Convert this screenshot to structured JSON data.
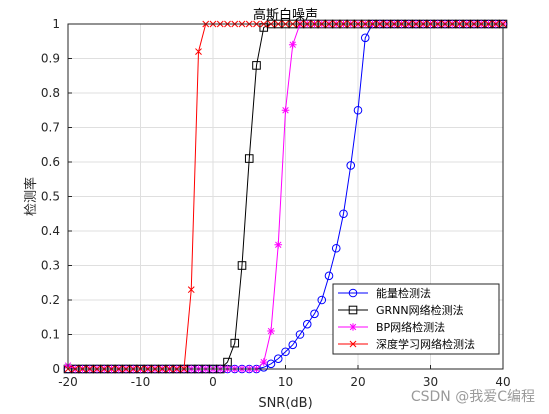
{
  "chart_data": {
    "type": "line",
    "title": "高斯白噪声",
    "xlabel": "SNR(dB)",
    "ylabel": "检测率",
    "xlim": [
      -20,
      40
    ],
    "ylim": [
      0,
      1
    ],
    "xticks": [
      -20,
      -10,
      0,
      10,
      20,
      30,
      40
    ],
    "yticks": [
      0,
      0.1,
      0.2,
      0.3,
      0.4,
      0.5,
      0.6,
      0.7,
      0.8,
      0.9,
      1
    ],
    "grid": true,
    "legend_position": "bottom-right",
    "x": [
      -20,
      -19,
      -18,
      -17,
      -16,
      -15,
      -14,
      -13,
      -12,
      -11,
      -10,
      -9,
      -8,
      -7,
      -6,
      -5,
      -4,
      -3,
      -2,
      -1,
      0,
      1,
      2,
      3,
      4,
      5,
      6,
      7,
      8,
      9,
      10,
      11,
      12,
      13,
      14,
      15,
      16,
      17,
      18,
      19,
      20,
      21,
      22,
      23,
      24,
      25,
      26,
      27,
      28,
      29,
      30,
      31,
      32,
      33,
      34,
      35,
      36,
      37,
      38,
      39,
      40
    ],
    "series": [
      {
        "name": "能量检测法",
        "color": "#0000ff",
        "marker": "circle",
        "values": [
          0,
          0,
          0,
          0,
          0,
          0,
          0,
          0,
          0,
          0,
          0,
          0,
          0,
          0,
          0,
          0,
          0,
          0,
          0,
          0,
          0,
          0,
          0,
          0,
          0,
          0,
          0,
          0.005,
          0.015,
          0.03,
          0.05,
          0.07,
          0.1,
          0.13,
          0.16,
          0.2,
          0.27,
          0.35,
          0.45,
          0.59,
          0.75,
          0.96,
          1,
          1,
          1,
          1,
          1,
          1,
          1,
          1,
          1,
          1,
          1,
          1,
          1,
          1,
          1,
          1,
          1,
          1,
          1
        ]
      },
      {
        "name": "GRNN网络检测法",
        "color": "#000000",
        "marker": "square",
        "values": [
          0,
          0,
          0,
          0,
          0,
          0,
          0,
          0,
          0,
          0,
          0,
          0,
          0,
          0,
          0,
          0,
          0,
          0,
          0,
          0,
          0,
          0,
          0.02,
          0.075,
          0.3,
          0.61,
          0.88,
          0.99,
          1,
          1,
          1,
          1,
          1,
          1,
          1,
          1,
          1,
          1,
          1,
          1,
          1,
          1,
          1,
          1,
          1,
          1,
          1,
          1,
          1,
          1,
          1,
          1,
          1,
          1,
          1,
          1,
          1,
          1,
          1,
          1,
          1
        ]
      },
      {
        "name": "BP网络检测法",
        "color": "#ff00ff",
        "marker": "star",
        "values": [
          0.01,
          0,
          0,
          0,
          0,
          0,
          0,
          0,
          0,
          0,
          0,
          0,
          0,
          0,
          0,
          0,
          0,
          0,
          0,
          0,
          0,
          0,
          0,
          0,
          0,
          0,
          0,
          0.02,
          0.11,
          0.36,
          0.75,
          0.94,
          1,
          1,
          1,
          1,
          1,
          1,
          1,
          1,
          1,
          1,
          1,
          1,
          1,
          1,
          1,
          1,
          1,
          1,
          1,
          1,
          1,
          1,
          1,
          1,
          1,
          1,
          1,
          1,
          1
        ]
      },
      {
        "name": "深度学习网络检测法",
        "color": "#ff0000",
        "marker": "x",
        "values": [
          0,
          0,
          0,
          0,
          0,
          0,
          0,
          0,
          0,
          0,
          0,
          0,
          0,
          0,
          0,
          0,
          0,
          0.23,
          0.92,
          1,
          1,
          1,
          1,
          1,
          1,
          1,
          1,
          1,
          1,
          1,
          1,
          1,
          1,
          1,
          1,
          1,
          1,
          1,
          1,
          1,
          1,
          1,
          1,
          1,
          1,
          1,
          1,
          1,
          1,
          1,
          1,
          1,
          1,
          1,
          1,
          1,
          1,
          1,
          1,
          1,
          1
        ]
      }
    ]
  },
  "watermark": "CSDN @我爱C编程"
}
